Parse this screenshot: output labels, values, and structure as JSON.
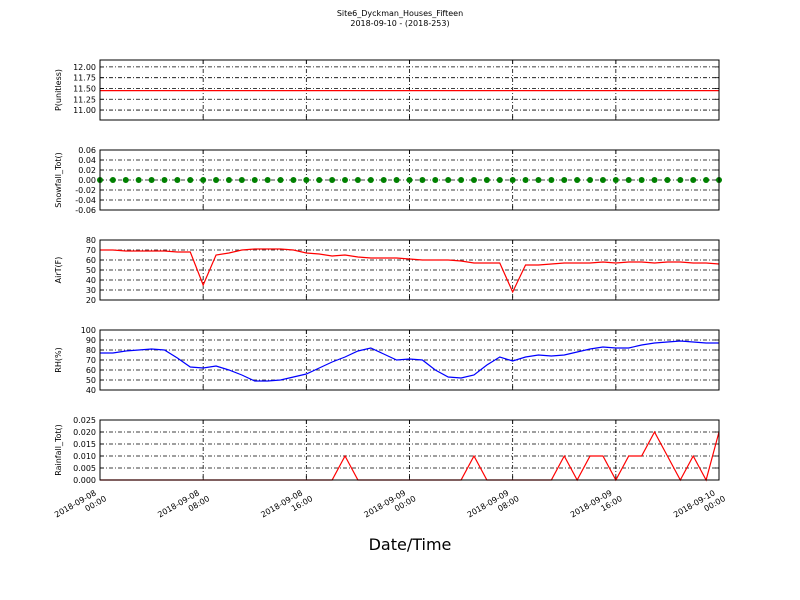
{
  "chart_data": {
    "type": "line",
    "title": "Site6_Dyckman_Houses_Fifteen",
    "subtitle": "2018-09-10 - (2018-253)",
    "xlabel": "Date/Time",
    "grid": true,
    "x": [
      "2018-09-08 00:00",
      "2018-09-08 01:00",
      "2018-09-08 02:00",
      "2018-09-08 03:00",
      "2018-09-08 04:00",
      "2018-09-08 05:00",
      "2018-09-08 06:00",
      "2018-09-08 07:00",
      "2018-09-08 08:00",
      "2018-09-08 09:00",
      "2018-09-08 10:00",
      "2018-09-08 11:00",
      "2018-09-08 12:00",
      "2018-09-08 13:00",
      "2018-09-08 14:00",
      "2018-09-08 15:00",
      "2018-09-08 16:00",
      "2018-09-08 17:00",
      "2018-09-08 18:00",
      "2018-09-08 19:00",
      "2018-09-08 20:00",
      "2018-09-08 21:00",
      "2018-09-08 22:00",
      "2018-09-08 23:00",
      "2018-09-09 00:00",
      "2018-09-09 01:00",
      "2018-09-09 02:00",
      "2018-09-09 03:00",
      "2018-09-09 04:00",
      "2018-09-09 05:00",
      "2018-09-09 06:00",
      "2018-09-09 07:00",
      "2018-09-09 08:00",
      "2018-09-09 09:00",
      "2018-09-09 10:00",
      "2018-09-09 11:00",
      "2018-09-09 12:00",
      "2018-09-09 13:00",
      "2018-09-09 14:00",
      "2018-09-09 15:00",
      "2018-09-09 16:00",
      "2018-09-09 17:00",
      "2018-09-09 18:00",
      "2018-09-09 19:00",
      "2018-09-09 20:00",
      "2018-09-09 21:00",
      "2018-09-09 22:00",
      "2018-09-09 23:00",
      "2018-09-10 00:00"
    ],
    "xlim": [
      "2018-09-08 00:00",
      "2018-09-10 00:00"
    ],
    "xticks": [
      "2018-09-08 00:00",
      "2018-09-08 08:00",
      "2018-09-08 16:00",
      "2018-09-09 00:00",
      "2018-09-09 08:00",
      "2018-09-09 16:00",
      "2018-09-10 00:00"
    ],
    "panels": [
      {
        "ylabel": "P(unitless)",
        "ylim": [
          10.77,
          12.16
        ],
        "yticks": [
          {
            "value": 11.0,
            "label": "11.00"
          },
          11.25,
          {
            "value": 11.5,
            "label": "11.50"
          },
          11.75,
          {
            "value": 12.0,
            "label": "12.00"
          }
        ],
        "series": [
          {
            "color": "#ff0000",
            "values": [
              11.45,
              11.45,
              11.45,
              11.45,
              11.45,
              11.45,
              11.45,
              11.45,
              11.45,
              11.45,
              11.45,
              11.45,
              11.45,
              11.45,
              11.45,
              11.45,
              11.45,
              11.45,
              11.45,
              11.45,
              11.45,
              11.45,
              11.45,
              11.45,
              11.45,
              11.45,
              11.45,
              11.45,
              11.45,
              11.45,
              11.45,
              11.45,
              11.45,
              11.45,
              11.45,
              11.45,
              11.45,
              11.45,
              11.45,
              11.45,
              11.45,
              11.45,
              11.45,
              11.45,
              11.45,
              11.45,
              11.45,
              11.45,
              11.45
            ]
          }
        ]
      },
      {
        "ylabel": "Snowfall_Tot()",
        "ylim": [
          -0.06,
          0.06
        ],
        "yticks": [
          -0.06,
          -0.04,
          -0.02,
          {
            "value": 0,
            "label": "0.00"
          },
          0.02,
          0.04,
          0.06
        ],
        "series": [
          {
            "color": "#008000",
            "marker": "o",
            "values": [
              0,
              0,
              0,
              0,
              0,
              0,
              0,
              0,
              0,
              0,
              0,
              0,
              0,
              0,
              0,
              0,
              0,
              0,
              0,
              0,
              0,
              0,
              0,
              0,
              0,
              0,
              0,
              0,
              0,
              0,
              0,
              0,
              0,
              0,
              0,
              0,
              0,
              0,
              0,
              0,
              0,
              0,
              0,
              0,
              0,
              0,
              0,
              0,
              0
            ]
          }
        ]
      },
      {
        "ylabel": "AirT(F)",
        "ylim": [
          20,
          80
        ],
        "yticks": [
          20,
          30,
          40,
          50,
          60,
          70,
          80
        ],
        "series": [
          {
            "color": "#ff0000",
            "values": [
              70,
              70,
              69,
              69,
              69,
              69,
              68,
              68,
              35,
              65,
              67,
              70,
              71,
              71,
              71,
              70,
              67,
              66,
              64,
              65,
              63,
              62,
              62,
              62,
              61,
              60,
              60,
              60,
              59,
              57,
              57,
              57,
              28,
              55,
              55,
              56,
              57,
              57,
              57,
              58,
              57,
              58,
              58,
              57,
              58,
              58,
              57,
              57,
              56
            ]
          }
        ]
      },
      {
        "ylabel": "RH(%)",
        "ylim": [
          40,
          100
        ],
        "yticks": [
          40,
          50,
          60,
          70,
          80,
          90,
          100
        ],
        "series": [
          {
            "color": "#0000ff",
            "values": [
              77,
              77,
              79,
              80,
              81,
              80,
              72,
              63,
              62,
              64,
              60,
              55,
              49,
              49,
              50,
              53,
              56,
              62,
              68,
              73,
              79,
              82,
              76,
              70,
              71,
              70,
              60,
              53,
              52,
              55,
              65,
              73,
              69,
              73,
              75,
              74,
              75,
              78,
              81,
              83,
              82,
              82,
              85,
              87,
              88,
              89,
              88,
              87,
              87
            ]
          }
        ]
      },
      {
        "ylabel": "Rainfall_Tot()",
        "ylim": [
          0,
          0.025
        ],
        "yticks": [
          {
            "value": 0,
            "label": "0.000"
          },
          0.005,
          {
            "value": 0.01,
            "label": "0.010"
          },
          0.015,
          {
            "value": 0.02,
            "label": "0.020"
          },
          0.025
        ],
        "series": [
          {
            "color": "#ff0000",
            "values": [
              0,
              0,
              0,
              0,
              0,
              0,
              0,
              0,
              0,
              0,
              0,
              0,
              0,
              0,
              0,
              0,
              0,
              0,
              0,
              0.01,
              0,
              0,
              0,
              0,
              0,
              0,
              0,
              0,
              0,
              0.01,
              0,
              0,
              0,
              0,
              0,
              0,
              0.01,
              0,
              0.01,
              0.01,
              0,
              0.01,
              0.01,
              0.02,
              0.01,
              0,
              0.01,
              0,
              0.02
            ]
          }
        ]
      }
    ]
  }
}
